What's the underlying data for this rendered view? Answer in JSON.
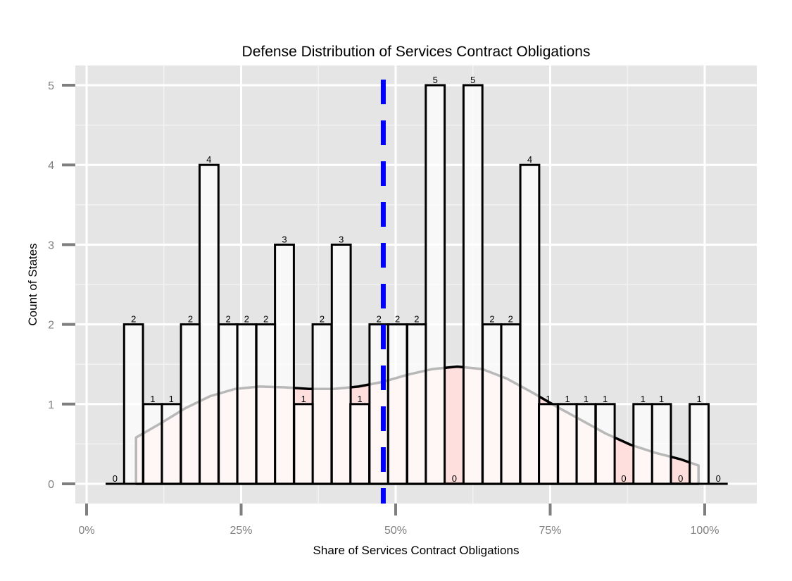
{
  "chart_data": {
    "type": "bar",
    "title": "Defense Distribution of Services Contract Obligations",
    "xlabel": "Share of Services Contract Obligations",
    "ylabel": "Count of States",
    "xlim": [
      0,
      1
    ],
    "ylim": [
      0,
      5
    ],
    "x_tick_values": [
      0,
      0.25,
      0.5,
      0.75,
      1.0
    ],
    "x_tick_labels": [
      "0%",
      "25%",
      "50%",
      "75%",
      "100%"
    ],
    "y_tick_values": [
      0,
      1,
      2,
      3,
      4,
      5
    ],
    "y_tick_labels": [
      "0",
      "1",
      "2",
      "3",
      "4",
      "5"
    ],
    "bin_width": 0.0305,
    "bins_x": [
      0.046,
      0.076,
      0.107,
      0.137,
      0.168,
      0.198,
      0.229,
      0.259,
      0.29,
      0.32,
      0.351,
      0.381,
      0.412,
      0.442,
      0.473,
      0.503,
      0.534,
      0.564,
      0.595,
      0.625,
      0.656,
      0.686,
      0.717,
      0.747,
      0.778,
      0.808,
      0.839,
      0.869,
      0.9,
      0.93,
      0.961,
      0.991,
      1.022
    ],
    "counts": [
      0,
      2,
      1,
      1,
      2,
      4,
      2,
      2,
      2,
      3,
      1,
      2,
      3,
      1,
      2,
      2,
      2,
      5,
      0,
      5,
      2,
      2,
      4,
      1,
      1,
      1,
      1,
      0,
      1,
      1,
      0,
      1,
      0
    ],
    "density_curve": {
      "x": [
        0.08,
        0.12,
        0.16,
        0.2,
        0.24,
        0.28,
        0.32,
        0.36,
        0.4,
        0.44,
        0.48,
        0.52,
        0.56,
        0.6,
        0.64,
        0.68,
        0.72,
        0.76,
        0.8,
        0.84,
        0.88,
        0.92,
        0.96,
        0.99
      ],
      "y": [
        0.58,
        0.76,
        0.95,
        1.1,
        1.19,
        1.22,
        1.21,
        1.19,
        1.19,
        1.22,
        1.28,
        1.37,
        1.44,
        1.47,
        1.44,
        1.32,
        1.15,
        0.97,
        0.8,
        0.63,
        0.49,
        0.39,
        0.31,
        0.23
      ],
      "fill": "#ffdede"
    },
    "mean_line": {
      "x": 0.48,
      "color": "#0000ff",
      "style": "dashed"
    },
    "colors": {
      "panel": "#e5e5e5",
      "grid": "#ffffff",
      "bar_fill": "#ffffff",
      "bar_stroke": "#000000"
    },
    "grid": true
  }
}
